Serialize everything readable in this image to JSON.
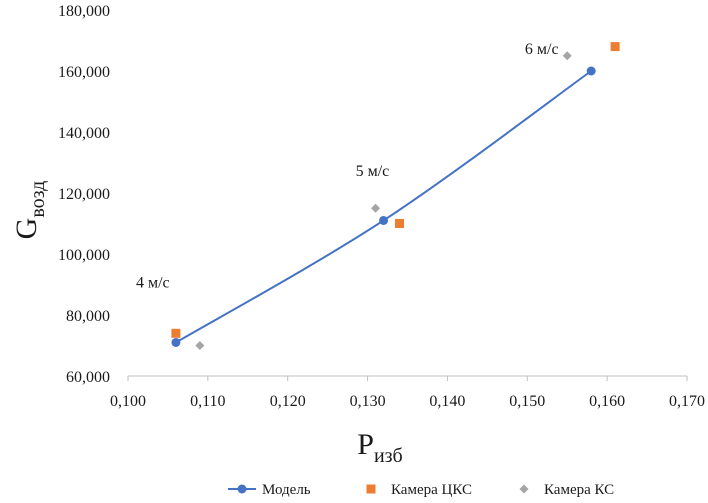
{
  "chart_data": {
    "type": "scatter",
    "title": "",
    "xlabel": {
      "main": "P",
      "sub": "изб"
    },
    "ylabel": {
      "main": "G",
      "sub": "возд"
    },
    "xlim": [
      0.1,
      0.17
    ],
    "ylim": [
      60000,
      180000
    ],
    "x_ticks": [
      "0,100",
      "0,110",
      "0,120",
      "0,130",
      "0,140",
      "0,150",
      "0,160",
      "0,170"
    ],
    "x_tick_values": [
      0.1,
      0.11,
      0.12,
      0.13,
      0.14,
      0.15,
      0.16,
      0.17
    ],
    "y_ticks": [
      "60,000",
      "80,000",
      "100,000",
      "120,000",
      "140,000",
      "160,000",
      "180,000"
    ],
    "y_tick_values": [
      60000,
      80000,
      100000,
      120000,
      140000,
      160000,
      180000
    ],
    "grid": false,
    "legend_position": "bottom",
    "series": [
      {
        "name": "Модель",
        "style": "line-marker",
        "marker": "circle",
        "color": "#4472C4",
        "x": [
          0.106,
          0.132,
          0.158
        ],
        "y": [
          71000,
          111000,
          160000
        ]
      },
      {
        "name": "Камера ЦКС",
        "style": "marker",
        "marker": "square",
        "color": "#ED7D31",
        "x": [
          0.106,
          0.134,
          0.161
        ],
        "y": [
          74000,
          110000,
          168000
        ]
      },
      {
        "name": "Камера КС",
        "style": "marker",
        "marker": "diamond",
        "color": "#A5A5A5",
        "x": [
          0.109,
          0.131,
          0.155
        ],
        "y": [
          70000,
          115000,
          165000
        ]
      }
    ],
    "annotations": [
      {
        "text": "4 м/с",
        "x": 0.101,
        "y": 89000
      },
      {
        "text": "5 м/с",
        "x": 0.1285,
        "y": 125500
      },
      {
        "text": "6 м/с",
        "x": 0.1497,
        "y": 165500
      }
    ]
  }
}
